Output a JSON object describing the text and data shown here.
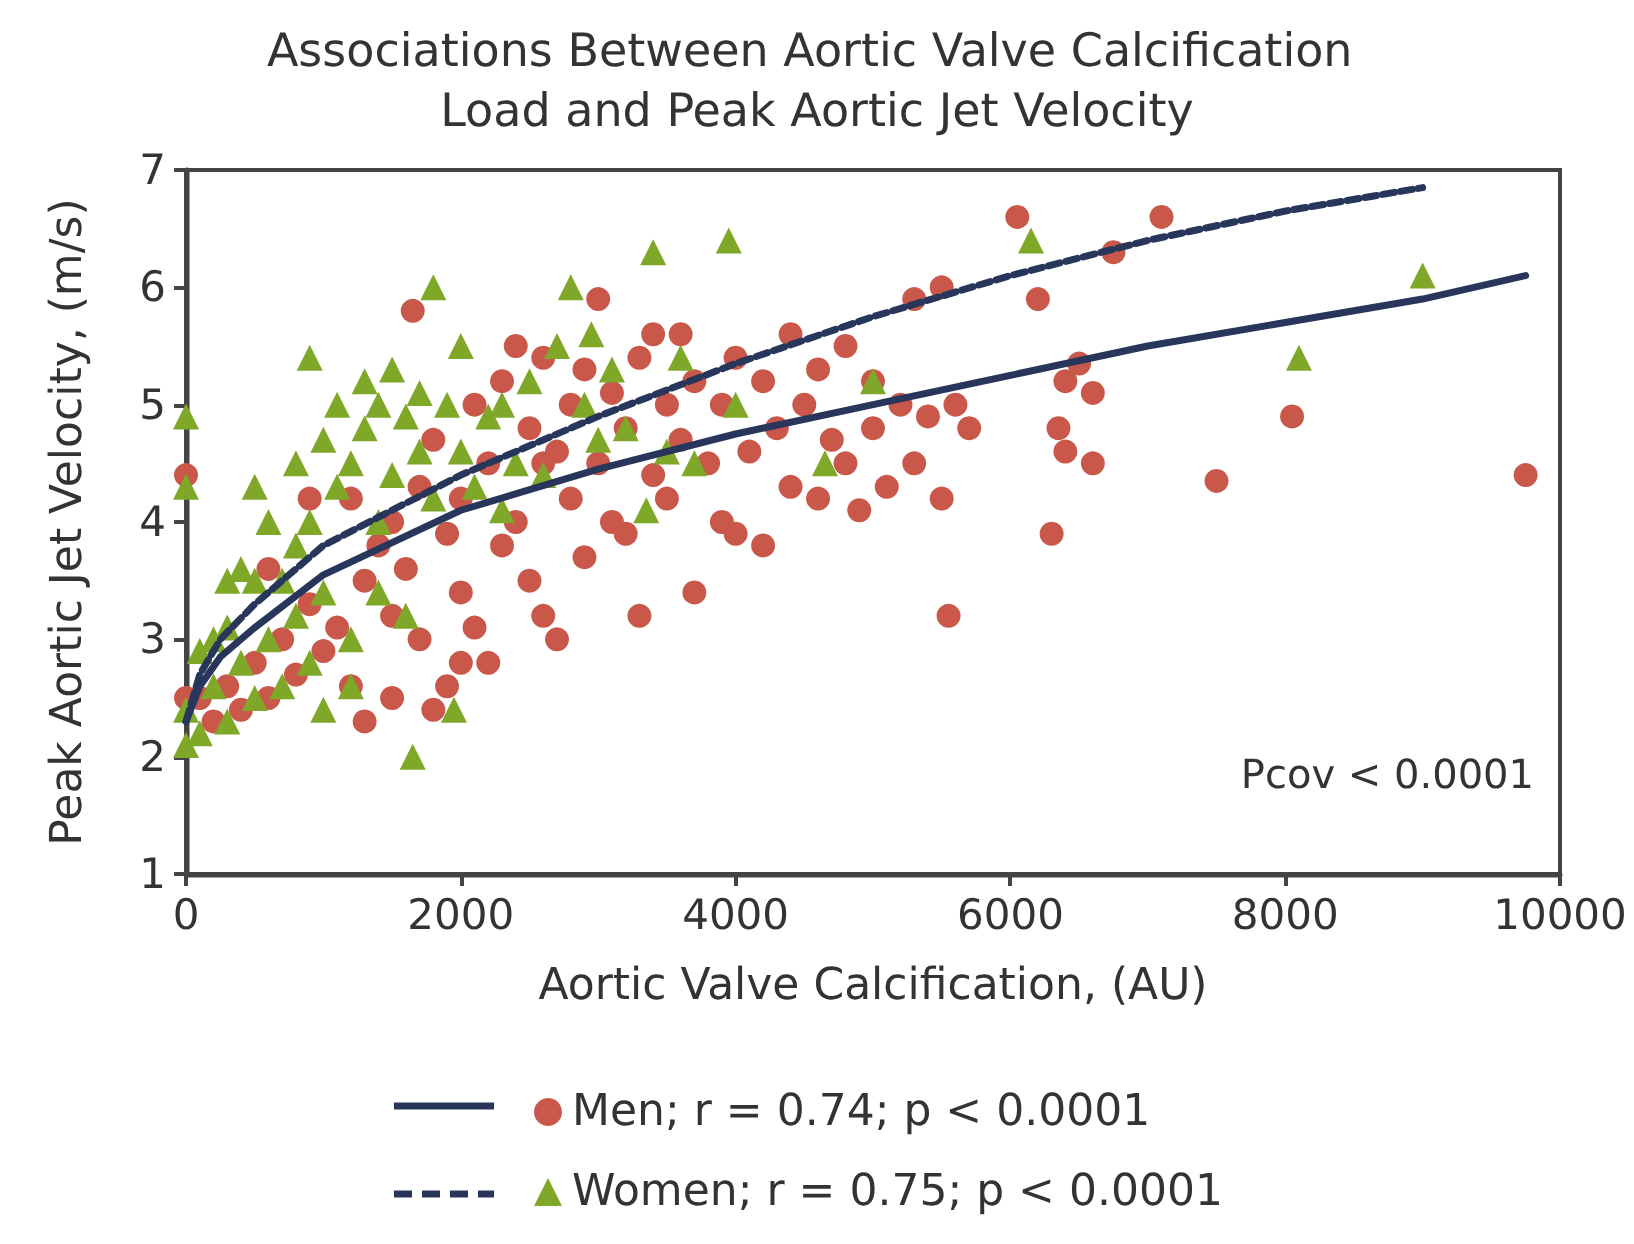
{
  "chart_data": {
    "type": "scatter",
    "title": "Associations Between Aortic Valve Calcification Load and Peak Aortic Jet Velocity",
    "xlabel": "Aortic Valve Calcification, (AU)",
    "ylabel": "Peak Aortic Jet Velocity, (m/s)",
    "xlim": [
      0,
      10000
    ],
    "xticks": [
      0,
      2000,
      4000,
      6000,
      8000,
      10000
    ],
    "ylim": [
      1,
      7
    ],
    "yticks": [
      1,
      2,
      3,
      4,
      5,
      6,
      7
    ],
    "grid": false,
    "legend": "bottom",
    "annotations": [
      "Pcov < 0.0001"
    ],
    "series": [
      {
        "name": "Men; r = 0.74; p < 0.0001",
        "marker": "circle",
        "color": "#c9574a",
        "x": [
          100,
          200,
          300,
          400,
          500,
          600,
          700,
          800,
          900,
          1000,
          1100,
          1200,
          1300,
          1300,
          1400,
          1500,
          1500,
          1600,
          1700,
          1700,
          1800,
          1800,
          1900,
          1900,
          2000,
          2000,
          2100,
          2100,
          2200,
          2200,
          2300,
          2300,
          2400,
          2400,
          2500,
          2500,
          2600,
          2600,
          2700,
          2700,
          2800,
          2800,
          2900,
          2900,
          3000,
          3000,
          3100,
          3100,
          3200,
          3200,
          3300,
          3300,
          3400,
          3500,
          3500,
          3600,
          3600,
          3700,
          3700,
          3800,
          3900,
          3900,
          4000,
          4000,
          4100,
          4200,
          4200,
          4300,
          4400,
          4400,
          4500,
          4600,
          4600,
          4700,
          4800,
          4800,
          4900,
          5000,
          5000,
          5100,
          5200,
          5300,
          5300,
          5400,
          5500,
          5500,
          5550,
          5600,
          5700,
          6050,
          6200,
          6300,
          6350,
          6400,
          6400,
          6500,
          6600,
          6600,
          6750,
          7100,
          7500,
          8050,
          9750,
          0,
          0,
          1650,
          1200,
          900,
          600,
          2000,
          1500,
          3400,
          2600
        ],
        "values": [
          2.5,
          2.3,
          2.6,
          2.4,
          2.8,
          2.5,
          3.0,
          2.7,
          3.3,
          2.9,
          3.1,
          2.6,
          2.3,
          3.5,
          3.8,
          3.2,
          4.0,
          3.6,
          4.3,
          3.0,
          4.7,
          2.4,
          2.6,
          3.9,
          4.2,
          3.4,
          5.0,
          3.1,
          4.5,
          2.8,
          5.2,
          3.8,
          5.5,
          4.0,
          4.8,
          3.5,
          5.4,
          3.2,
          4.6,
          3.0,
          5.0,
          4.2,
          5.3,
          3.7,
          5.9,
          4.5,
          4.0,
          5.1,
          4.8,
          3.9,
          3.2,
          5.4,
          4.4,
          5.0,
          4.2,
          5.6,
          4.7,
          3.4,
          5.2,
          4.5,
          4.0,
          5.0,
          5.4,
          3.9,
          4.6,
          5.2,
          3.8,
          4.8,
          5.6,
          4.3,
          5.0,
          4.2,
          5.3,
          4.7,
          5.5,
          4.5,
          4.1,
          5.2,
          4.8,
          4.3,
          5.0,
          4.5,
          5.9,
          4.9,
          6.0,
          4.2,
          3.2,
          5.0,
          4.8,
          6.6,
          5.9,
          3.9,
          4.8,
          4.6,
          5.2,
          5.35,
          5.1,
          4.5,
          6.3,
          6.6,
          4.35,
          4.9,
          4.4,
          4.4,
          2.5,
          5.8,
          4.2,
          4.2,
          3.6,
          2.8,
          2.5,
          5.6,
          4.5
        ]
      },
      {
        "name": "Women; r = 0.75; p < 0.0001",
        "marker": "triangle",
        "color": "#7fa829",
        "x": [
          0,
          0,
          0,
          0,
          100,
          100,
          200,
          200,
          300,
          300,
          400,
          400,
          500,
          500,
          500,
          600,
          600,
          700,
          700,
          800,
          800,
          900,
          900,
          900,
          1000,
          1000,
          1000,
          1100,
          1100,
          1200,
          1200,
          1300,
          1300,
          1400,
          1400,
          1500,
          1500,
          1600,
          1600,
          1650,
          1700,
          1700,
          1800,
          1800,
          1900,
          1950,
          2000,
          2000,
          2100,
          2200,
          2300,
          2400,
          2500,
          2600,
          2700,
          2800,
          2900,
          2950,
          3000,
          3100,
          3200,
          3350,
          3400,
          3500,
          3600,
          3700,
          3950,
          4000,
          4650,
          5000,
          6150,
          8100,
          9000,
          1400,
          800,
          300,
          1200,
          2300
        ],
        "values": [
          4.9,
          4.3,
          2.4,
          2.1,
          2.9,
          2.2,
          3.0,
          2.6,
          3.1,
          2.3,
          3.6,
          2.8,
          4.3,
          3.5,
          2.5,
          4.0,
          3.0,
          3.5,
          2.6,
          4.5,
          3.2,
          5.4,
          4.0,
          2.8,
          4.7,
          3.4,
          2.4,
          5.0,
          4.3,
          4.5,
          3.0,
          5.2,
          4.8,
          4.0,
          3.4,
          5.3,
          4.4,
          4.9,
          3.2,
          2.0,
          5.1,
          4.6,
          6.0,
          4.2,
          5.0,
          2.4,
          4.6,
          5.5,
          4.3,
          4.9,
          5.0,
          4.5,
          5.2,
          4.4,
          5.5,
          6.0,
          5.0,
          5.6,
          4.7,
          5.3,
          4.8,
          4.1,
          6.3,
          4.6,
          5.4,
          4.5,
          6.4,
          5.0,
          4.5,
          5.2,
          6.4,
          5.4,
          6.1,
          5.0,
          3.8,
          3.5,
          2.6,
          4.1
        ]
      },
      {
        "type": "line",
        "line_style": "solid",
        "marker": "none",
        "color": "#27365a",
        "x": [
          0,
          100,
          250,
          500,
          1000,
          2000,
          3000,
          4000,
          5000,
          6000,
          7000,
          8000,
          9000,
          9750
        ],
        "values": [
          2.3,
          2.6,
          2.85,
          3.1,
          3.55,
          4.1,
          4.45,
          4.75,
          5.0,
          5.25,
          5.5,
          5.7,
          5.9,
          6.1
        ]
      },
      {
        "type": "line",
        "line_style": "dashed",
        "marker": "none",
        "color": "#27365a",
        "x": [
          0,
          100,
          250,
          500,
          1000,
          2000,
          3000,
          4000,
          5000,
          6000,
          7000,
          8000,
          9000
        ],
        "values": [
          2.3,
          2.7,
          3.0,
          3.3,
          3.8,
          4.4,
          4.9,
          5.35,
          5.75,
          6.1,
          6.4,
          6.65,
          6.85
        ]
      }
    ]
  }
}
